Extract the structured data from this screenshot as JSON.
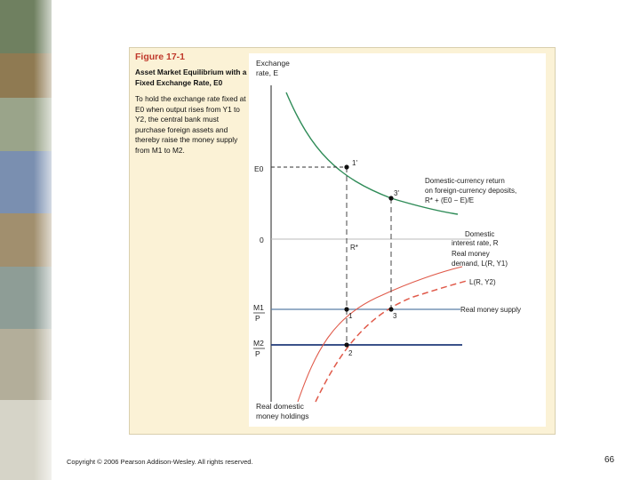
{
  "caption": {
    "figure_number": "Figure 17-1",
    "title": "Asset Market Equilibrium with a Fixed Exchange Rate, E0",
    "description": "To hold the exchange rate fixed at E0 when output rises from Y1 to Y2, the central bank must purchase foreign assets and thereby raise the money supply from M1 to M2."
  },
  "graph": {
    "top_axis_label_1": "Exchange",
    "top_axis_label_2": "rate, E",
    "e0_label": "E0",
    "zero_label": "0",
    "r_star_label": "R*",
    "domestic_return_label": "Domestic-currency return",
    "foreign_deposits_label": "on foreign-currency deposits,",
    "foreign_formula": "R* + (E0 − E)/E",
    "interest_label_1": "Domestic",
    "interest_label_2": "interest rate, R",
    "demand1_label_1": "Real money",
    "demand1_label_2": "demand, L(R, Y1)",
    "demand2_label": "L(R, Y2)",
    "supply_label": "Real money supply",
    "m1_label": "M1",
    "m2_label": "M2",
    "p_label": "P",
    "holdings_label_1": "Real domestic",
    "holdings_label_2": "money holdings",
    "points": {
      "p1prime": "1'",
      "p3prime": "3'",
      "p1": "1",
      "p2": "2",
      "p3": "3"
    }
  },
  "colors": {
    "foreign_return_curve": "#2e8b57",
    "money_demand_curves": "#e05a4a",
    "money_supply_m1": "#5b7fa6",
    "money_supply_m2": "#1f3a7a",
    "figure_number": "#c0392b"
  },
  "footer": {
    "copyright": "Copyright © 2006 Pearson Addison-Wesley. All rights reserved.",
    "page_number": "66"
  }
}
